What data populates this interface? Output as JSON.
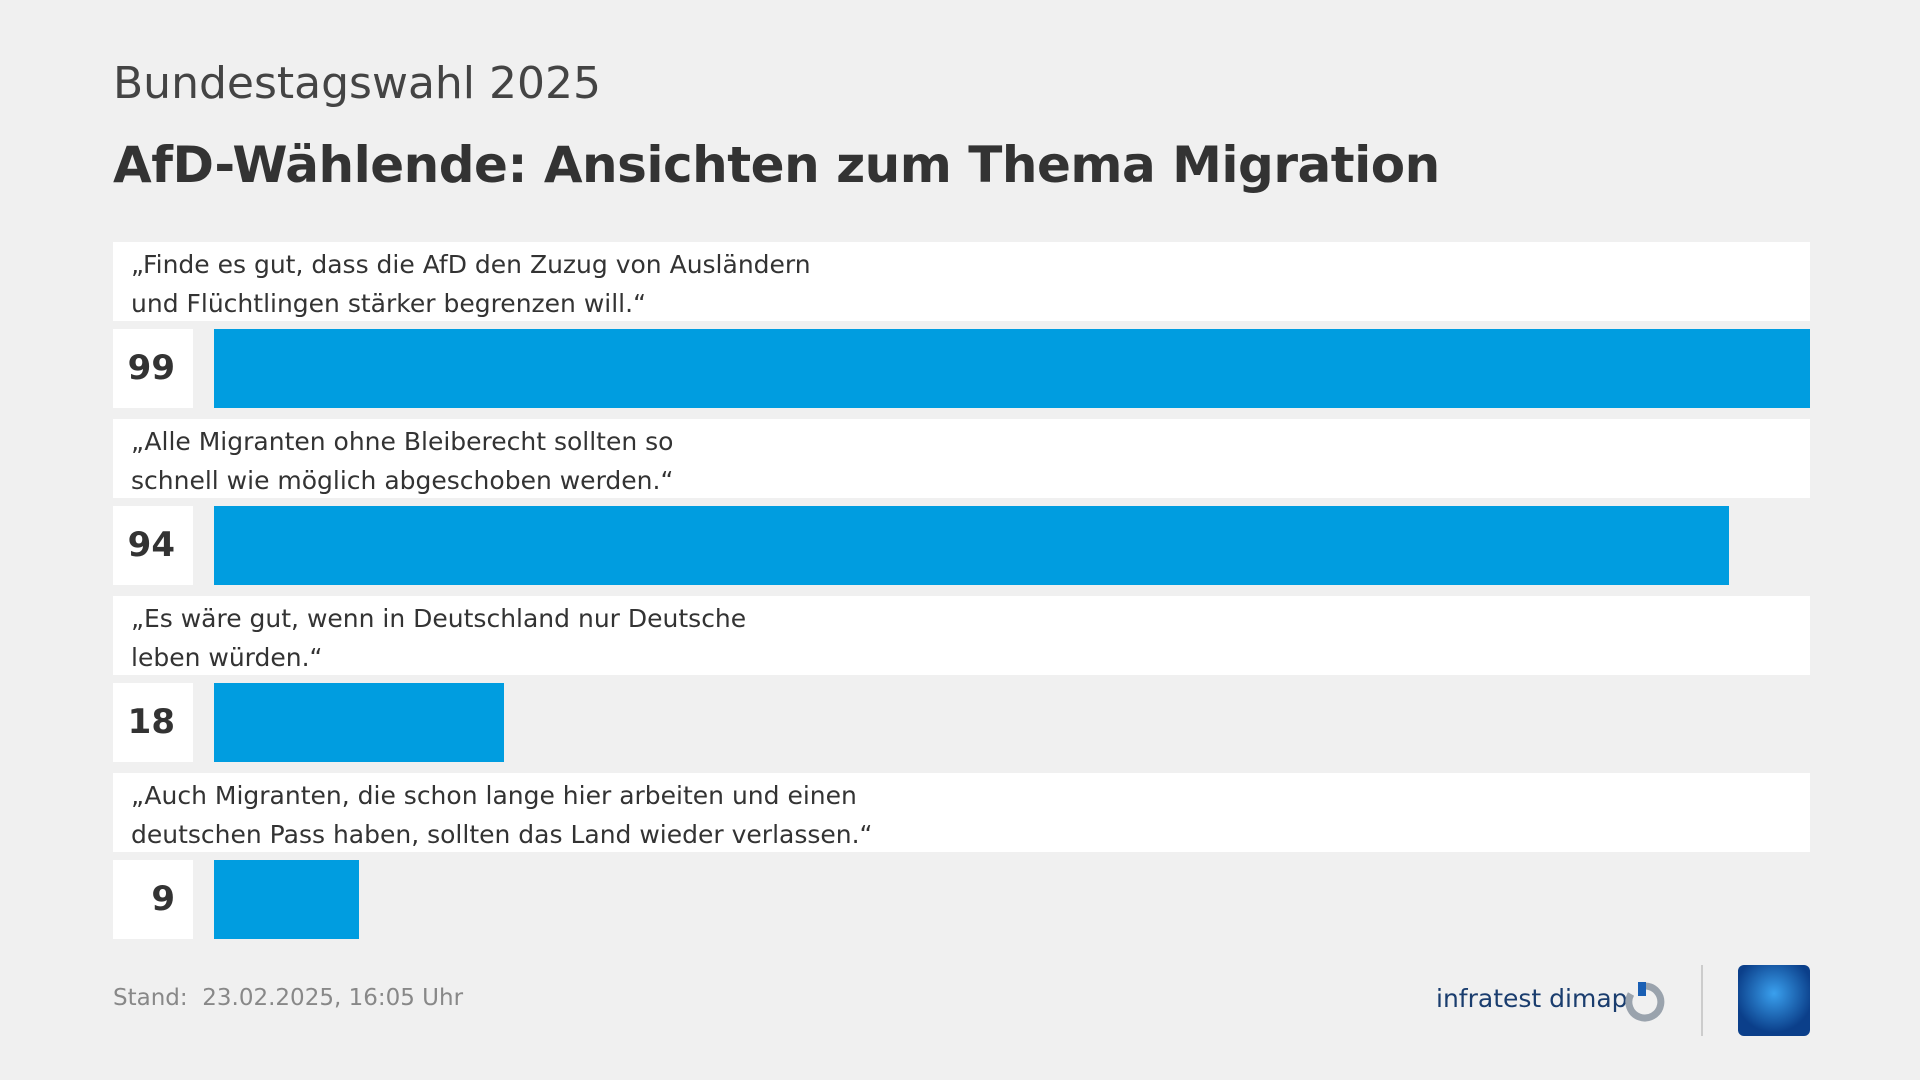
{
  "chart_data": {
    "type": "bar",
    "subtitle": "Bundestagswahl 2025",
    "title": "AfD-Wählende: Ansichten zum Thema Migration",
    "categories": [
      "„Finde es gut, dass die AfD den Zuzug von Ausländern\nund Flüchtlingen stärker begrenzen will.“",
      "„Alle Migranten ohne Bleiberecht sollten so\nschnell wie möglich abgeschoben werden.“",
      "„Es wäre gut, wenn in Deutschland nur Deutsche\nleben würden.“",
      "„Auch Migranten, die schon lange hier arbeiten und einen\ndeutschen Pass haben, sollten das Land wieder verlassen.“"
    ],
    "values": [
      99,
      94,
      18,
      9
    ],
    "color": "#009de0"
  },
  "footer": {
    "label": "Stand:",
    "date": "23.02.2025, 16:05 Uhr",
    "source": "infratest dimap"
  }
}
